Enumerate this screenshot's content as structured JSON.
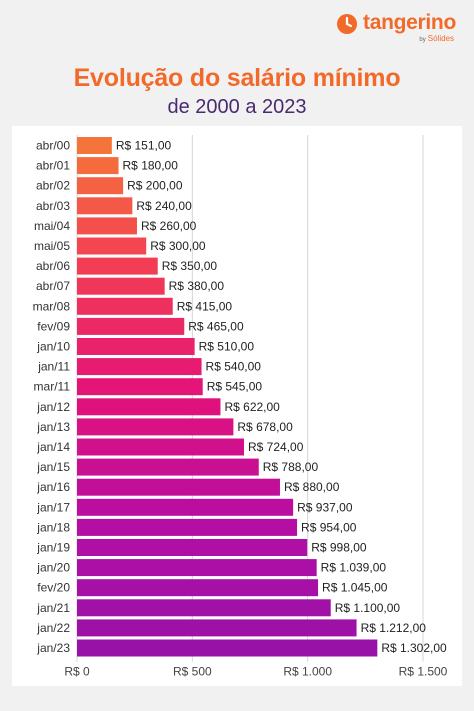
{
  "brand": {
    "name": "tangerino",
    "by": "by",
    "partner": "Sólides",
    "color": "#f26a2a"
  },
  "chart_data": {
    "type": "bar",
    "orientation": "horizontal",
    "title": "Evolução do salário mínimo",
    "subtitle": "de 2000 a 2023",
    "categories": [
      "abr/00",
      "abr/01",
      "abr/02",
      "abr/03",
      "mai/04",
      "mai/05",
      "abr/06",
      "abr/07",
      "mar/08",
      "fev/09",
      "jan/10",
      "jan/11",
      "mar/11",
      "jan/12",
      "jan/13",
      "jan/14",
      "jan/15",
      "jan/16",
      "jan/17",
      "jan/18",
      "jan/19",
      "jan/20",
      "fev/20",
      "jan/21",
      "jan/22",
      "jan/23"
    ],
    "values": [
      151,
      180,
      200,
      240,
      260,
      300,
      350,
      380,
      415,
      465,
      510,
      540,
      545,
      622,
      678,
      724,
      788,
      880,
      937,
      954,
      998,
      1039,
      1045,
      1100,
      1212,
      1302
    ],
    "value_labels": [
      "R$ 151,00",
      "R$ 180,00",
      "R$ 200,00",
      "R$ 240,00",
      "R$ 260,00",
      "R$ 300,00",
      "R$ 350,00",
      "R$ 380,00",
      "R$ 415,00",
      "R$ 465,00",
      "R$ 510,00",
      "R$ 540,00",
      "R$ 545,00",
      "R$ 622,00",
      "R$ 678,00",
      "R$ 724,00",
      "R$ 788,00",
      "R$ 880,00",
      "R$ 937,00",
      "R$ 954,00",
      "R$ 998,00",
      "R$ 1.039,00",
      "R$ 1.045,00",
      "R$ 1.100,00",
      "R$ 1.212,00",
      "R$ 1.302,00"
    ],
    "xticks": [
      0,
      500,
      1000,
      1500
    ],
    "xtick_labels": [
      "R$ 0",
      "R$ 500",
      "R$ 1.000",
      "R$ 1.500"
    ],
    "xlim": [
      0,
      1500
    ],
    "grid": true,
    "gradient_colors": [
      "#f5743a",
      "#f23b55",
      "#e3127a",
      "#b50ea4",
      "#9812a8"
    ]
  }
}
